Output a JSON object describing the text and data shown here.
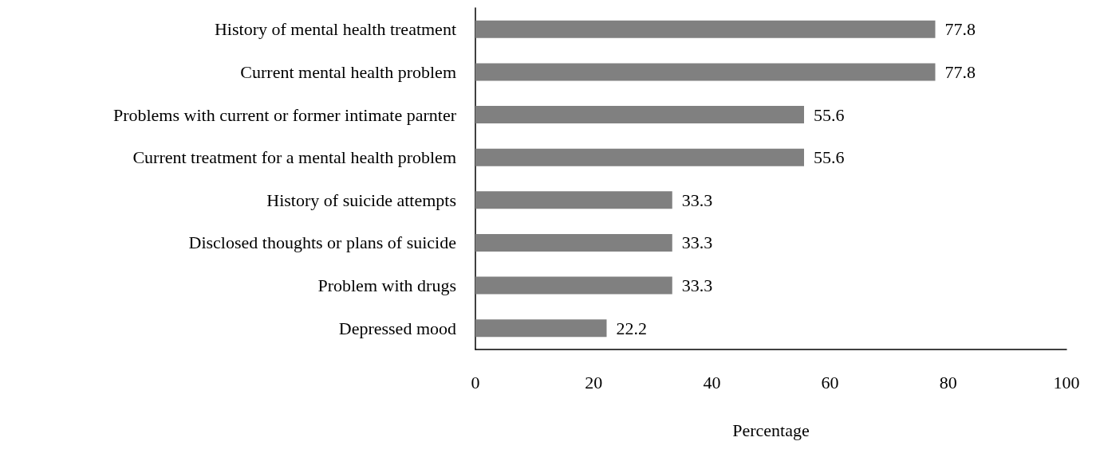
{
  "chart_data": {
    "type": "bar",
    "orientation": "horizontal",
    "xlabel": "Percentage",
    "categories": [
      "History of mental health treatment",
      "Current mental health problem",
      "Problems with current or former intimate parnter",
      "Current treatment for a mental health problem",
      "History of suicide attempts",
      "Disclosed thoughts or plans of suicide",
      "Problem with drugs",
      "Depressed mood"
    ],
    "values": [
      77.8,
      77.8,
      55.6,
      55.6,
      33.3,
      33.3,
      33.3,
      22.2
    ],
    "color": "#808080",
    "xlim": [
      0,
      100
    ],
    "xticks": [
      0,
      20,
      40,
      60,
      80,
      100
    ],
    "data_labels": true,
    "grid": false
  }
}
